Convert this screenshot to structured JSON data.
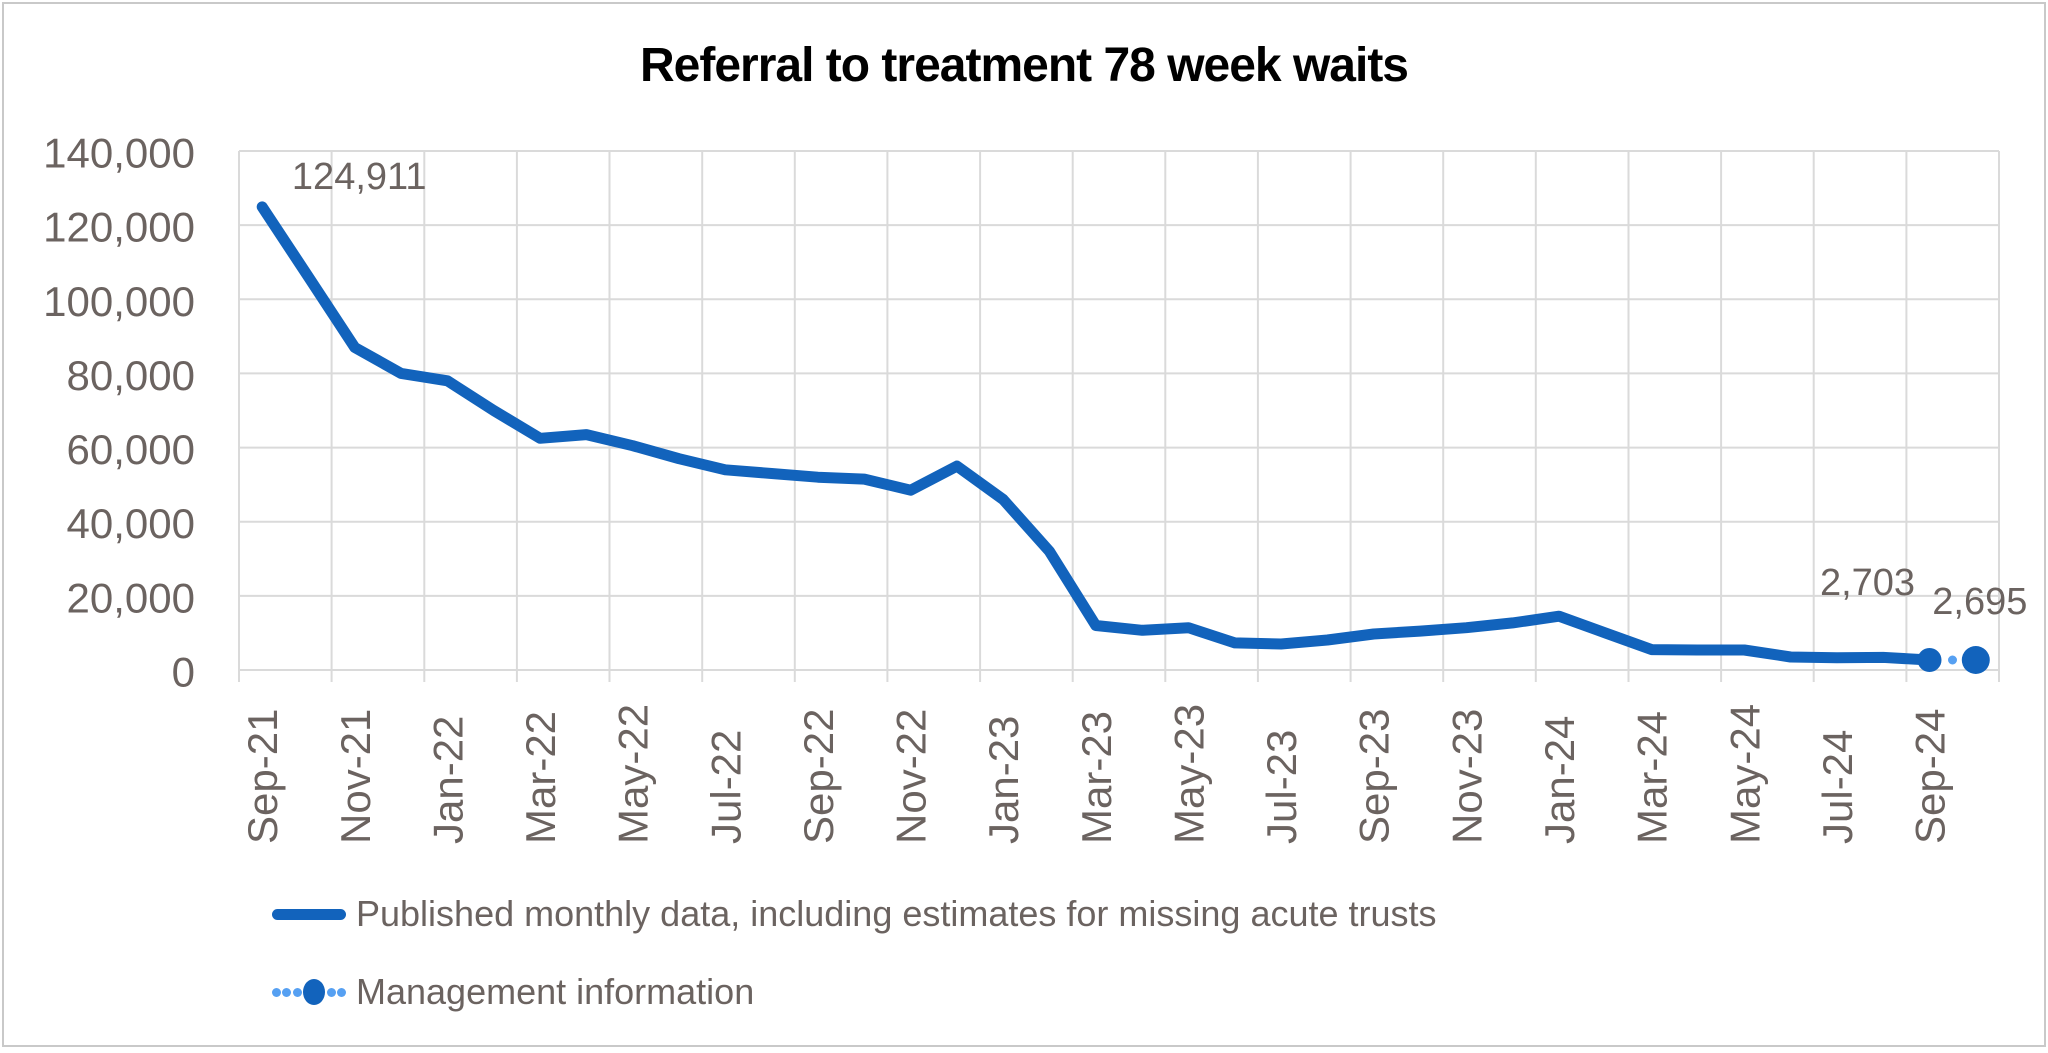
{
  "chart_data": {
    "type": "line",
    "title": "Referral to treatment 78 week waits",
    "x_categories": [
      "Sep-21",
      "Oct-21",
      "Nov-21",
      "Dec-21",
      "Jan-22",
      "Feb-22",
      "Mar-22",
      "Apr-22",
      "May-22",
      "Jun-22",
      "Jul-22",
      "Aug-22",
      "Sep-22",
      "Oct-22",
      "Nov-22",
      "Dec-22",
      "Jan-23",
      "Feb-23",
      "Mar-23",
      "Apr-23",
      "May-23",
      "Jun-23",
      "Jul-23",
      "Aug-23",
      "Sep-23",
      "Oct-23",
      "Nov-23",
      "Dec-23",
      "Jan-24",
      "Feb-24",
      "Mar-24",
      "Apr-24",
      "May-24",
      "Jun-24",
      "Jul-24",
      "Aug-24",
      "Sep-24",
      "Oct-24"
    ],
    "x_tick_labels": [
      "Sep-21",
      "Nov-21",
      "Jan-22",
      "Mar-22",
      "May-22",
      "Jul-22",
      "Sep-22",
      "Nov-22",
      "Jan-23",
      "Mar-23",
      "May-23",
      "Jul-23",
      "Sep-23",
      "Nov-23",
      "Jan-24",
      "Mar-24",
      "May-24",
      "Jul-24",
      "Sep-24"
    ],
    "y_ticks": [
      {
        "value": 0,
        "label": "0"
      },
      {
        "value": 20000,
        "label": "20,000"
      },
      {
        "value": 40000,
        "label": "40,000"
      },
      {
        "value": 60000,
        "label": "60,000"
      },
      {
        "value": 80000,
        "label": "80,000"
      },
      {
        "value": 100000,
        "label": "100,000"
      },
      {
        "value": 120000,
        "label": "120,000"
      },
      {
        "value": 140000,
        "label": "140,000"
      }
    ],
    "ylim": [
      0,
      140000
    ],
    "grid": "both",
    "legend_position": "bottom-left",
    "series": [
      {
        "name": "Published monthly data, including estimates for missing acute trusts",
        "style": "solid",
        "color": "#1263bc",
        "end_marker": true,
        "values": [
          124911,
          106000,
          87000,
          80000,
          78000,
          70000,
          62500,
          63500,
          60500,
          57000,
          54000,
          53000,
          52000,
          51500,
          48500,
          55000,
          46000,
          32000,
          12000,
          10700,
          11400,
          7300,
          7000,
          8100,
          9700,
          10500,
          11400,
          12700,
          14500,
          10000,
          5500,
          5400,
          5400,
          3500,
          3300,
          3400,
          2703
        ]
      },
      {
        "name": "Management information",
        "style": "dotted",
        "color": "#56a0f2",
        "marker_color": "#1263bc",
        "start_index": 36,
        "values": [
          2703,
          2695
        ]
      }
    ],
    "data_labels": [
      {
        "series": 0,
        "index": 0,
        "text": "124,911"
      },
      {
        "series": 0,
        "index": 36,
        "text": "2,703"
      },
      {
        "series": 1,
        "index": 1,
        "text": "2,695"
      }
    ]
  },
  "colors": {
    "line_blue": "#1263bc",
    "dot_light_blue": "#56a0f2",
    "text_gray": "#6b6360",
    "gridline": "#dadada",
    "frame_border": "#c9c9c9",
    "title": "#000000"
  }
}
